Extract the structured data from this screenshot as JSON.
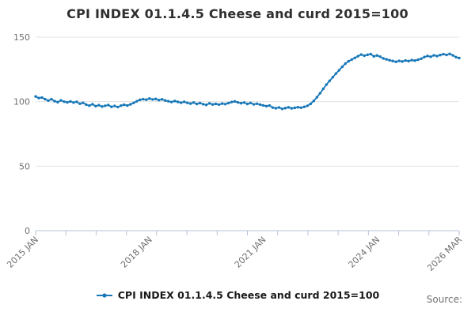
{
  "page": {
    "title": "CPI INDEX 01.1.4.5 Cheese and curd 2015=100",
    "source_label": "Source:"
  },
  "legend": {
    "label": "CPI INDEX 01.1.4.5 Cheese and curd 2015=100"
  },
  "colors": {
    "series": "#1878b8",
    "grid": "#e3e3e3",
    "axis": "#b7c3d6",
    "tick_label": "#6f6f6f",
    "title": "#2f2f2f",
    "legend_text": "#1a1a1a",
    "source_text": "#707070"
  },
  "chart_data": {
    "type": "line",
    "title": "CPI INDEX 01.1.4.5 Cheese and curd 2015=100",
    "frequency": "monthly",
    "x_start": "2015 JAN",
    "x_end": "2026 MAR",
    "ylim": [
      0,
      150
    ],
    "y_ticks": [
      0,
      50,
      100,
      150
    ],
    "grid": "horizontal",
    "legend_position": "bottom",
    "x_tick_labels": [
      {
        "label": "2015 JAN",
        "month_index": 0
      },
      {
        "label": "2018 JAN",
        "month_index": 36
      },
      {
        "label": "2021 JAN",
        "month_index": 72
      },
      {
        "label": "2024 JAN",
        "month_index": 108
      },
      {
        "label": "2026 MAR",
        "month_index": 134
      }
    ],
    "minor_tick_count": 15,
    "series": [
      {
        "name": "CPI INDEX 01.1.4.5 Cheese and curd 2015=100",
        "values": [
          104.0,
          102.8,
          103.2,
          101.9,
          100.8,
          101.9,
          100.4,
          99.6,
          101.0,
          100.0,
          99.4,
          100.2,
          99.3,
          99.9,
          98.4,
          99.1,
          97.7,
          96.9,
          98.0,
          96.5,
          97.3,
          96.2,
          96.8,
          97.4,
          96.0,
          96.7,
          95.8,
          96.9,
          97.6,
          97.0,
          97.9,
          99.0,
          100.3,
          101.4,
          101.9,
          101.5,
          102.4,
          101.7,
          102.1,
          101.2,
          101.8,
          100.9,
          100.3,
          99.7,
          100.5,
          99.8,
          99.2,
          99.9,
          99.1,
          98.5,
          99.3,
          98.2,
          98.9,
          98.0,
          97.5,
          98.7,
          97.8,
          98.3,
          97.7,
          98.5,
          98.1,
          98.9,
          99.7,
          100.2,
          99.4,
          98.8,
          99.3,
          98.2,
          99.0,
          97.9,
          98.4,
          97.7,
          97.1,
          96.5,
          97.0,
          95.4,
          94.9,
          95.5,
          94.4,
          95.0,
          95.6,
          94.8,
          95.2,
          95.7,
          95.3,
          96.0,
          96.8,
          98.3,
          100.6,
          103.4,
          106.5,
          109.9,
          113.2,
          116.1,
          118.9,
          121.7,
          124.3,
          127.0,
          129.5,
          131.3,
          132.6,
          133.9,
          135.2,
          136.5,
          135.6,
          136.3,
          136.9,
          135.1,
          135.8,
          134.9,
          133.5,
          132.8,
          132.1,
          131.5,
          130.9,
          131.6,
          131.1,
          131.9,
          131.4,
          132.2,
          131.8,
          132.5,
          133.3,
          134.6,
          135.4,
          134.8,
          135.9,
          135.3,
          136.1,
          136.8,
          136.2,
          137.0,
          135.9,
          134.5,
          133.8
        ]
      }
    ]
  }
}
